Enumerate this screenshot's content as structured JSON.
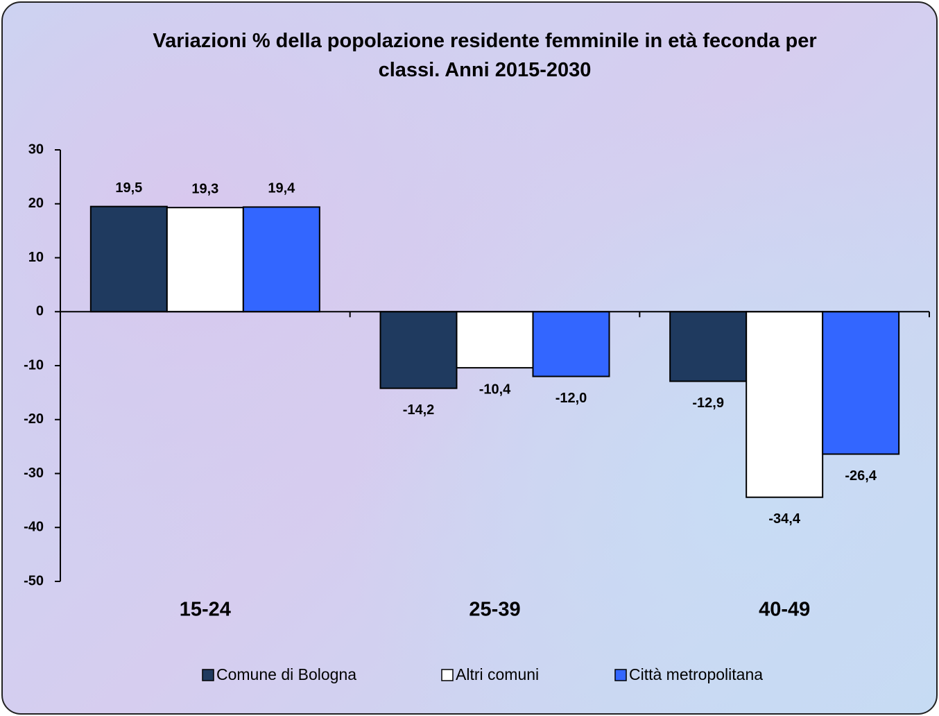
{
  "chart_data": {
    "type": "bar",
    "title": "Variazioni % della popolazione residente femminile in età feconda per classi. Anni 2015-2030",
    "categories": [
      "15-24",
      "25-39",
      "40-49"
    ],
    "series": [
      {
        "name": "Comune di Bologna",
        "color": "#1f3a5f",
        "values": [
          19.5,
          -14.2,
          -12.9
        ],
        "value_labels": [
          "19,5",
          "-14,2",
          "-12,9"
        ]
      },
      {
        "name": "Altri comuni",
        "color": "#ffffff",
        "values": [
          19.3,
          -10.4,
          -34.4
        ],
        "value_labels": [
          "19,3",
          "-10,4",
          "-34,4"
        ]
      },
      {
        "name": "Città metropolitana",
        "color": "#3366ff",
        "values": [
          19.4,
          -12.0,
          -26.4
        ],
        "value_labels": [
          "19,4",
          "-12,0",
          "-26,4"
        ]
      }
    ],
    "ylim": [
      -50,
      30
    ],
    "yticks": [
      -50,
      -40,
      -30,
      -20,
      -10,
      0,
      10,
      20,
      30
    ]
  }
}
